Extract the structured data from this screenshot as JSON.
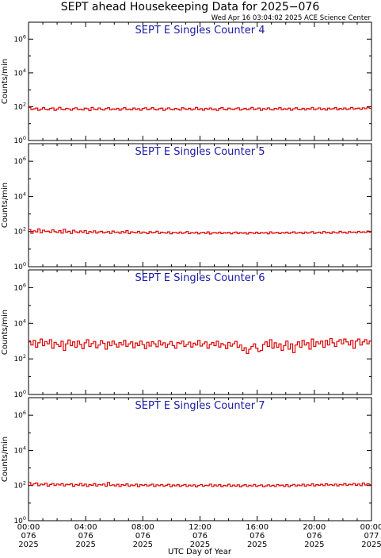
{
  "header": {
    "title": "SEPT ahead Housekeeping Data for 2025−076",
    "timestamp": "Wed Apr 16 03:04:02 2025 ACE Science Center"
  },
  "axes": {
    "xlabel": "UTC Day of Year",
    "ylabel": "Counts/min"
  },
  "colors": {
    "trace": "#dd0000",
    "panel_title": "#1a1aa6",
    "frame": "#000000"
  },
  "chart_data": {
    "type": "line",
    "y_scale": "log",
    "ylim": [
      1,
      10000000
    ],
    "ytick_values": [
      1,
      100,
      10000,
      1000000
    ],
    "ytick_base": "10",
    "ytick_exponents": [
      "0",
      "2",
      "4",
      "6"
    ],
    "xlim_hours": [
      0,
      24
    ],
    "xticks": [
      {
        "hours": 0,
        "time": "00:00",
        "day": "076",
        "year": "2025"
      },
      {
        "hours": 4,
        "time": "04:00",
        "day": "076",
        "year": "2025"
      },
      {
        "hours": 8,
        "time": "08:00",
        "day": "076",
        "year": "2025"
      },
      {
        "hours": 12,
        "time": "12:00",
        "day": "076",
        "year": "2025"
      },
      {
        "hours": 16,
        "time": "16:00",
        "day": "076",
        "year": "2025"
      },
      {
        "hours": 20,
        "time": "20:00",
        "day": "076",
        "year": "2025"
      },
      {
        "hours": 24,
        "time": "00:00",
        "day": "077",
        "year": "2025"
      }
    ],
    "panels": [
      {
        "title": "SEPT E Singles Counter 4",
        "series": [
          {
            "values": [
              90,
              68,
              75,
              83,
              61,
              72,
              88,
              70,
              65,
              79,
              85,
              60,
              73,
              92,
              70,
              66,
              80,
              74,
              62,
              77,
              86,
              69,
              71,
              64,
              82,
              76,
              58,
              90,
              72,
              67,
              84,
              71,
              63,
              78,
              87,
              66,
              74,
              69,
              80,
              62,
              75,
              89,
              68,
              72,
              65,
              83,
              70,
              76,
              61,
              79,
              86,
              67,
              73,
              88,
              71,
              64,
              77,
              82,
              60,
              74,
              85,
              70,
              66,
              79,
              72,
              63,
              87,
              75,
              69,
              81,
              64,
              73,
              90,
              68,
              76,
              62,
              80,
              71,
              84,
              67,
              74,
              59,
              78,
              88,
              70,
              65,
              82,
              73,
              69,
              77,
              86,
              63,
              72,
              80,
              66,
              75,
              90,
              68,
              74,
              83,
              61,
              77,
              71,
              85,
              69,
              64,
              79,
              73,
              88,
              66,
              76,
              70,
              82,
              62,
              75,
              87,
              71,
              68,
              80,
              64,
              78,
              73,
              91,
              67,
              74,
              85,
              69,
              77,
              63,
              82,
              72,
              76,
              88,
              65,
              79,
              71,
              84,
              68,
              75,
              90,
              73,
              78,
              82,
              70,
              86,
              76,
              92,
              80
            ]
          }
        ]
      },
      {
        "title": "SEPT E Singles Counter 5",
        "series": [
          {
            "values": [
              130,
              80,
              110,
              95,
              140,
              85,
              120,
              100,
              105,
              90,
              125,
              98,
              88,
              112,
              82,
              135,
              92,
              104,
              78,
              118,
              96,
              86,
              108,
              90,
              114,
              76,
              100,
              88,
              110,
              82,
              96,
              104,
              84,
              92,
              98,
              78,
              106,
              88,
              94,
              80,
              100,
              86,
              112,
              76,
              96,
              90,
              84,
              102,
              80,
              94,
              88,
              76,
              98,
              84,
              90,
              104,
              78,
              92,
              86,
              82,
              96,
              74,
              90,
              88,
              80,
              94,
              78,
              86,
              100,
              76,
              88,
              82,
              92,
              74,
              86,
              90,
              78,
              96,
              72,
              84,
              88,
              80,
              92,
              76,
              86,
              82,
              90,
              74,
              84,
              94,
              78,
              88,
              80,
              86,
              72,
              90,
              84,
              78,
              92,
              76,
              86,
              82,
              88,
              74,
              96,
              80,
              84,
              90,
              76,
              88,
              82,
              92,
              78,
              86,
              96,
              80,
              84,
              90,
              76,
              94,
              82,
              88,
              98,
              78,
              86,
              92,
              80,
              100,
              84,
              90,
              78,
              96,
              88,
              82,
              104,
              86,
              92,
              80,
              98,
              88,
              94,
              84,
              102,
              90,
              96,
              88,
              106,
              92
            ]
          }
        ]
      },
      {
        "title": "SEPT E Singles Counter 6",
        "series": [
          {
            "values": [
              900,
              600,
              1100,
              450,
              800,
              1300,
              550,
              950,
              700,
              1200,
              400,
              850,
              650,
              500,
              980,
              300,
              700,
              1150,
              550,
              900,
              450,
              1000,
              650,
              380,
              800,
              1200,
              500,
              720,
              950,
              420,
              600,
              1050,
              750,
              350,
              880,
              550,
              1000,
              680,
              460,
              820,
              600,
              1100,
              500,
              700,
              900,
              420,
              780,
              560,
              1000,
              640,
              380,
              860,
              520,
              920,
              700,
              480,
              1050,
              600,
              800,
              440,
              680,
              950,
              560,
              400,
              820,
              720,
              1000,
              500,
              640,
              880,
              460,
              760,
              600,
              1100,
              520,
              700,
              900,
              400,
              650,
              820,
              550,
              980,
              460,
              720,
              600,
              380,
              840,
              520,
              700,
              960,
              440,
              600,
              300,
              420,
              200,
              350,
              500,
              700,
              400,
              260,
              300,
              650,
              900,
              500,
              1200,
              400,
              800,
              450,
              700,
              300,
              550,
              1000,
              350,
              700,
              220,
              600,
              900,
              450,
              1100,
              600,
              800,
              350,
              1300,
              500,
              900,
              700,
              1000,
              450,
              1100,
              600,
              1400,
              800,
              500,
              950,
              1200,
              700,
              1300,
              900,
              600,
              1100,
              400,
              1000,
              1300,
              600,
              900,
              1200,
              700,
              1000
            ]
          }
        ]
      },
      {
        "title": "SEPT E Singles Counter 7",
        "series": [
          {
            "values": [
              150,
              105,
              125,
              140,
              98,
              120,
              110,
              135,
              92,
              115,
              130,
              100,
              122,
              108,
              128,
              95,
              118,
              112,
              126,
              90,
              115,
              105,
              132,
              98,
              120,
              88,
              112,
              104,
              128,
              94,
              116,
              108,
              122,
              92,
              150,
              100,
              110,
              96,
              118,
              88,
              112,
              102,
              124,
              92,
              108,
              98,
              120,
              86,
              112,
              100,
              116,
              94,
              106,
              120,
              88,
              110,
              98,
              114,
              92,
              104,
              118,
              86,
              108,
              96,
              112,
              90,
              102,
              116,
              88,
              106,
              94,
              110,
              84,
              100,
              114,
              92,
              104,
              98,
              120,
              88,
              108,
              94,
              112,
              86,
              102,
              96,
              118,
              90,
              106,
              92,
              110,
              84,
              98,
              112,
              88,
              104,
              94,
              116,
              90,
              100,
              108,
              86,
              96,
              110,
              92,
              104,
              88,
              114,
              98,
              106,
              90,
              112,
              86,
              102,
              116,
              94,
              108,
              98,
              120,
              92,
              110,
              100,
              124,
              94,
              112,
              104,
              118,
              98,
              126,
              106,
              114,
              100,
              122,
              96,
              116,
              108,
              128,
              102,
              118,
              110,
              132,
              104,
              122,
              98,
              140,
              108,
              124,
              116
            ]
          }
        ]
      }
    ]
  }
}
